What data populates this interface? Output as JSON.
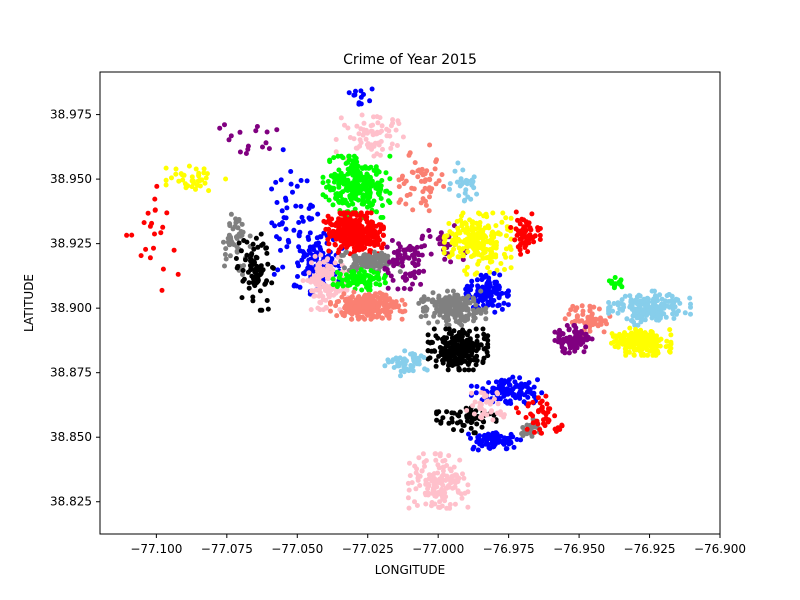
{
  "chart_data": {
    "type": "scatter",
    "title": "Crime of Year 2015",
    "xlabel": "LONGITUDE",
    "ylabel": "LATITUDE",
    "xlim": [
      -77.12,
      -76.9
    ],
    "ylim": [
      38.8125,
      38.9915
    ],
    "x_ticks": [
      -77.1,
      -77.075,
      -77.05,
      -77.025,
      -77.0,
      -76.975,
      -76.95,
      -76.925,
      -76.9
    ],
    "x_tick_labels": [
      "−77.100",
      "−77.075",
      "−77.050",
      "−77.025",
      "−77.000",
      "−76.975",
      "−76.950",
      "−76.925",
      "−76.900"
    ],
    "y_ticks": [
      38.825,
      38.85,
      38.875,
      38.9,
      38.925,
      38.95,
      38.975
    ],
    "y_tick_labels": [
      "38.825",
      "38.850",
      "38.875",
      "38.900",
      "38.925",
      "38.950",
      "38.975"
    ],
    "grid": false,
    "legend": "none",
    "clusters": [
      {
        "color": "#ff0000",
        "center": [
          -77.1,
          38.928
        ],
        "spread": [
          0.008,
          0.016
        ],
        "count": 22
      },
      {
        "color": "#ffff00",
        "center": [
          -77.086,
          38.95
        ],
        "spread": [
          0.008,
          0.005
        ],
        "count": 40
      },
      {
        "color": "#800080",
        "center": [
          -77.067,
          38.965
        ],
        "spread": [
          0.008,
          0.006
        ],
        "count": 16
      },
      {
        "color": "#808080",
        "center": [
          -77.072,
          38.925
        ],
        "spread": [
          0.004,
          0.01
        ],
        "count": 45
      },
      {
        "color": "#000000",
        "center": [
          -77.065,
          38.915
        ],
        "spread": [
          0.005,
          0.012
        ],
        "count": 80
      },
      {
        "color": "#0000ff",
        "center": [
          -77.052,
          38.935
        ],
        "spread": [
          0.007,
          0.02
        ],
        "count": 60
      },
      {
        "color": "#0000ff",
        "center": [
          -77.042,
          38.918
        ],
        "spread": [
          0.006,
          0.01
        ],
        "count": 110
      },
      {
        "color": "#ffc0cb",
        "center": [
          -77.04,
          38.91
        ],
        "spread": [
          0.006,
          0.008
        ],
        "count": 120
      },
      {
        "color": "#0000ff",
        "center": [
          -77.03,
          38.982
        ],
        "spread": [
          0.005,
          0.004
        ],
        "count": 12
      },
      {
        "color": "#ffc0cb",
        "center": [
          -77.023,
          38.966
        ],
        "spread": [
          0.01,
          0.007
        ],
        "count": 70
      },
      {
        "color": "#fa8072",
        "center": [
          -77.006,
          38.95
        ],
        "spread": [
          0.006,
          0.01
        ],
        "count": 55
      },
      {
        "color": "#00ff00",
        "center": [
          -77.029,
          38.947
        ],
        "spread": [
          0.009,
          0.009
        ],
        "count": 260
      },
      {
        "color": "#ff0000",
        "center": [
          -77.03,
          38.929
        ],
        "spread": [
          0.008,
          0.006
        ],
        "count": 320
      },
      {
        "color": "#808080",
        "center": [
          -77.024,
          38.918
        ],
        "spread": [
          0.008,
          0.003
        ],
        "count": 120
      },
      {
        "color": "#00ff00",
        "center": [
          -77.028,
          38.911
        ],
        "spread": [
          0.007,
          0.003
        ],
        "count": 110
      },
      {
        "color": "#fa8072",
        "center": [
          -77.025,
          38.901
        ],
        "spread": [
          0.01,
          0.004
        ],
        "count": 230
      },
      {
        "color": "#800080",
        "center": [
          -77.011,
          38.918
        ],
        "spread": [
          0.006,
          0.008
        ],
        "count": 80
      },
      {
        "color": "#800080",
        "center": [
          -76.998,
          38.925
        ],
        "spread": [
          0.006,
          0.007
        ],
        "count": 30
      },
      {
        "color": "#87ceeb",
        "center": [
          -76.991,
          38.947
        ],
        "spread": [
          0.004,
          0.007
        ],
        "count": 28
      },
      {
        "color": "#ffff00",
        "center": [
          -76.986,
          38.925
        ],
        "spread": [
          0.009,
          0.009
        ],
        "count": 220
      },
      {
        "color": "#ff0000",
        "center": [
          -76.969,
          38.928
        ],
        "spread": [
          0.004,
          0.007
        ],
        "count": 60
      },
      {
        "color": "#0000ff",
        "center": [
          -76.983,
          38.906
        ],
        "spread": [
          0.006,
          0.006
        ],
        "count": 130
      },
      {
        "color": "#808080",
        "center": [
          -76.995,
          38.9
        ],
        "spread": [
          0.009,
          0.005
        ],
        "count": 200
      },
      {
        "color": "#000000",
        "center": [
          -76.993,
          38.884
        ],
        "spread": [
          0.008,
          0.006
        ],
        "count": 240
      },
      {
        "color": "#87ceeb",
        "center": [
          -77.011,
          38.879
        ],
        "spread": [
          0.006,
          0.004
        ],
        "count": 55
      },
      {
        "color": "#0000ff",
        "center": [
          -76.975,
          38.868
        ],
        "spread": [
          0.01,
          0.004
        ],
        "count": 110
      },
      {
        "color": "#000000",
        "center": [
          -76.99,
          38.857
        ],
        "spread": [
          0.008,
          0.004
        ],
        "count": 60
      },
      {
        "color": "#ffc0cb",
        "center": [
          -76.982,
          38.862
        ],
        "spread": [
          0.006,
          0.004
        ],
        "count": 35
      },
      {
        "color": "#0000ff",
        "center": [
          -76.98,
          38.849
        ],
        "spread": [
          0.007,
          0.003
        ],
        "count": 75
      },
      {
        "color": "#808080",
        "center": [
          -76.967,
          38.853
        ],
        "spread": [
          0.003,
          0.003
        ],
        "count": 25
      },
      {
        "color": "#ff0000",
        "center": [
          -76.963,
          38.858
        ],
        "spread": [
          0.007,
          0.006
        ],
        "count": 45
      },
      {
        "color": "#ffc0cb",
        "center": [
          -77.0,
          38.833
        ],
        "spread": [
          0.008,
          0.008
        ],
        "count": 150
      },
      {
        "color": "#fa8072",
        "center": [
          -76.947,
          38.896
        ],
        "spread": [
          0.006,
          0.005
        ],
        "count": 55
      },
      {
        "color": "#800080",
        "center": [
          -76.952,
          38.888
        ],
        "spread": [
          0.005,
          0.004
        ],
        "count": 90
      },
      {
        "color": "#00ff00",
        "center": [
          -76.937,
          38.91
        ],
        "spread": [
          0.002,
          0.002
        ],
        "count": 14
      },
      {
        "color": "#87ceeb",
        "center": [
          -76.925,
          38.9
        ],
        "spread": [
          0.011,
          0.005
        ],
        "count": 190
      },
      {
        "color": "#ffff00",
        "center": [
          -76.928,
          38.887
        ],
        "spread": [
          0.008,
          0.004
        ],
        "count": 200
      }
    ]
  }
}
